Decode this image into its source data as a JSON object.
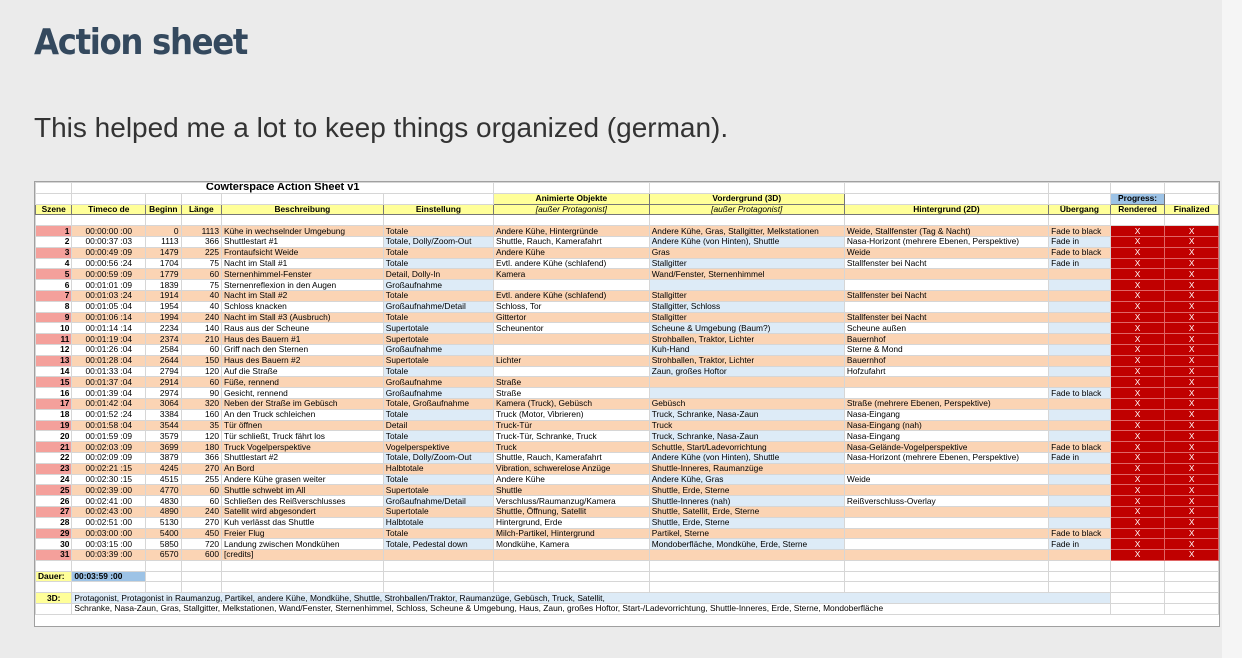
{
  "page": {
    "title": "Action sheet",
    "subtitle": "This helped me a lot to keep things organized (german)."
  },
  "sheet": {
    "title": "Cowterspace Action Sheet v1",
    "progress_label": "Progress:",
    "headers": {
      "szene": "Szene",
      "timecode": "Timeco de",
      "beginn": "Beginn",
      "laenge": "Länge",
      "beschreibung": "Beschreibung",
      "einstellung": "Einstellung",
      "animierte": "Animierte Objekte",
      "animierte_sub": "[außer Protagonist]",
      "vordergrund": "Vordergrund (3D)",
      "vordergrund_sub": "[außer Protagonist]",
      "hintergrund": "Hintergrund (2D)",
      "uebergang": "Übergang",
      "rendered": "Rendered",
      "finalized": "Finalized"
    },
    "rows": [
      {
        "n": "1",
        "tc": "00:00:00 :00",
        "b": "0",
        "l": "1113",
        "d": "Kühe in wechselnder Umgebung",
        "e": "Totale",
        "a": "Andere Kühe, Hintergründe",
        "v": "Andere Kühe, Gras, Stallgitter, Melkstationen",
        "h": "Weide, Stallfenster (Tag & Nacht)",
        "u": "Fade to black",
        "r": "X",
        "f": "X"
      },
      {
        "n": "2",
        "tc": "00:00:37 :03",
        "b": "1113",
        "l": "366",
        "d": "Shuttlestart #1",
        "e": "Totale, Dolly/Zoom-Out",
        "a": "Shuttle, Rauch, Kamerafahrt",
        "v": "Andere Kühe (von Hinten), Shuttle",
        "h": "Nasa-Horizont (mehrere Ebenen, Perspektive)",
        "u": "Fade in",
        "r": "X",
        "f": "X"
      },
      {
        "n": "3",
        "tc": "00:00:49 :09",
        "b": "1479",
        "l": "225",
        "d": "Frontaufsicht Weide",
        "e": "Totale",
        "a": "Andere Kühe",
        "v": "Gras",
        "h": "Weide",
        "u": "Fade to black",
        "r": "X",
        "f": "X"
      },
      {
        "n": "4",
        "tc": "00:00:56 :24",
        "b": "1704",
        "l": "75",
        "d": "Nacht im Stall #1",
        "e": "Totale",
        "a": "Evtl. andere Kühe (schlafend)",
        "v": "Stallgitter",
        "h": "Stallfenster bei Nacht",
        "u": "Fade in",
        "r": "X",
        "f": "X"
      },
      {
        "n": "5",
        "tc": "00:00:59 :09",
        "b": "1779",
        "l": "60",
        "d": "Sternenhimmel-Fenster",
        "e": "Detail, Dolly-In",
        "a": "Kamera",
        "v": "Wand/Fenster, Sternenhimmel",
        "h": "",
        "u": "",
        "r": "X",
        "f": "X"
      },
      {
        "n": "6",
        "tc": "00:01:01 :09",
        "b": "1839",
        "l": "75",
        "d": "Sternenreflexion in den Augen",
        "e": "Großaufnahme",
        "a": "",
        "v": "",
        "h": "",
        "u": "",
        "r": "X",
        "f": "X"
      },
      {
        "n": "7",
        "tc": "00:01:03 :24",
        "b": "1914",
        "l": "40",
        "d": "Nacht im Stall #2",
        "e": "Totale",
        "a": "Evtl. andere Kühe (schlafend)",
        "v": "Stallgitter",
        "h": "Stallfenster bei Nacht",
        "u": "",
        "r": "X",
        "f": "X"
      },
      {
        "n": "8",
        "tc": "00:01:05 :04",
        "b": "1954",
        "l": "40",
        "d": "Schloss knacken",
        "e": "Großaufnahme/Detail",
        "a": "Schloss, Tor",
        "v": "Stallgitter, Schloss",
        "h": "",
        "u": "",
        "r": "X",
        "f": "X"
      },
      {
        "n": "9",
        "tc": "00:01:06 :14",
        "b": "1994",
        "l": "240",
        "d": "Nacht im Stall #3 (Ausbruch)",
        "e": "Totale",
        "a": "Gittertor",
        "v": "Stallgitter",
        "h": "Stallfenster bei Nacht",
        "u": "",
        "r": "X",
        "f": "X"
      },
      {
        "n": "10",
        "tc": "00:01:14 :14",
        "b": "2234",
        "l": "140",
        "d": "Raus aus der Scheune",
        "e": "Supertotale",
        "a": "Scheunentor",
        "v": "Scheune & Umgebung (Baum?)",
        "h": "Scheune außen",
        "u": "",
        "r": "X",
        "f": "X"
      },
      {
        "n": "11",
        "tc": "00:01:19 :04",
        "b": "2374",
        "l": "210",
        "d": "Haus des Bauern #1",
        "e": "Supertotale",
        "a": "",
        "v": "Strohballen, Traktor, Lichter",
        "h": "Bauernhof",
        "u": "",
        "r": "X",
        "f": "X"
      },
      {
        "n": "12",
        "tc": "00:01:26 :04",
        "b": "2584",
        "l": "60",
        "d": "Griff nach den Sternen",
        "e": "Großaufnahme",
        "a": "",
        "v": "Kuh-Hand",
        "h": "Sterne & Mond",
        "u": "",
        "r": "X",
        "f": "X"
      },
      {
        "n": "13",
        "tc": "00:01:28 :04",
        "b": "2644",
        "l": "150",
        "d": "Haus des Bauern #2",
        "e": "Supertotale",
        "a": "Lichter",
        "v": "Strohballen, Traktor, Lichter",
        "h": "Bauernhof",
        "u": "",
        "r": "X",
        "f": "X"
      },
      {
        "n": "14",
        "tc": "00:01:33 :04",
        "b": "2794",
        "l": "120",
        "d": "Auf die Straße",
        "e": "Totale",
        "a": "",
        "v": "Zaun, großes Hoftor",
        "h": "Hofzufahrt",
        "u": "",
        "r": "X",
        "f": "X"
      },
      {
        "n": "15",
        "tc": "00:01:37 :04",
        "b": "2914",
        "l": "60",
        "d": "Füße, rennend",
        "e": "Großaufnahme",
        "a": "Straße",
        "v": "",
        "h": "",
        "u": "",
        "r": "X",
        "f": "X"
      },
      {
        "n": "16",
        "tc": "00:01:39 :04",
        "b": "2974",
        "l": "90",
        "d": "Gesicht, rennend",
        "e": "Großaufnahme",
        "a": "Straße",
        "v": "",
        "h": "",
        "u": "Fade to black",
        "r": "X",
        "f": "X"
      },
      {
        "n": "17",
        "tc": "00:01:42 :04",
        "b": "3064",
        "l": "320",
        "d": "Neben der Straße im Gebüsch",
        "e": "Totale, Großaufnahme",
        "a": "Kamera (Truck), Gebüsch",
        "v": "Gebüsch",
        "h": "Straße (mehrere Ebenen, Perspektive)",
        "u": "",
        "r": "X",
        "f": "X"
      },
      {
        "n": "18",
        "tc": "00:01:52 :24",
        "b": "3384",
        "l": "160",
        "d": "An den Truck schleichen",
        "e": "Totale",
        "a": "Truck (Motor, Vibrieren)",
        "v": "Truck, Schranke, Nasa-Zaun",
        "h": "Nasa-Eingang",
        "u": "",
        "r": "X",
        "f": "X"
      },
      {
        "n": "19",
        "tc": "00:01:58 :04",
        "b": "3544",
        "l": "35",
        "d": "Tür öffnen",
        "e": "Detail",
        "a": "Truck-Tür",
        "v": "Truck",
        "h": "Nasa-Eingang (nah)",
        "u": "",
        "r": "X",
        "f": "X"
      },
      {
        "n": "20",
        "tc": "00:01:59 :09",
        "b": "3579",
        "l": "120",
        "d": "Tür schließt, Truck fährt los",
        "e": "Totale",
        "a": "Truck-Tür, Schranke, Truck",
        "v": "Truck, Schranke, Nasa-Zaun",
        "h": "Nasa-Eingang",
        "u": "",
        "r": "X",
        "f": "X"
      },
      {
        "n": "21",
        "tc": "00:02:03 :09",
        "b": "3699",
        "l": "180",
        "d": "Truck Vogelperspektive",
        "e": "Vogelperspektive",
        "a": "Truck",
        "v": "Schuttle, Start/Ladevorrichtung",
        "h": "Nasa-Gelände-Vogelperspektive",
        "u": "Fade to black",
        "r": "X",
        "f": "X"
      },
      {
        "n": "22",
        "tc": "00:02:09 :09",
        "b": "3879",
        "l": "366",
        "d": "Shuttlestart #2",
        "e": "Totale, Dolly/Zoom-Out",
        "a": "Shuttle, Rauch, Kamerafahrt",
        "v": "Andere Kühe (von Hinten), Shuttle",
        "h": "Nasa-Horizont (mehrere Ebenen, Perspektive)",
        "u": "Fade in",
        "r": "X",
        "f": "X"
      },
      {
        "n": "23",
        "tc": "00:02:21 :15",
        "b": "4245",
        "l": "270",
        "d": "An Bord",
        "e": "Halbtotale",
        "a": "Vibration, schwerelose Anzüge",
        "v": "Shuttle-Inneres, Raumanzüge",
        "h": "",
        "u": "",
        "r": "X",
        "f": "X"
      },
      {
        "n": "24",
        "tc": "00:02:30 :15",
        "b": "4515",
        "l": "255",
        "d": "Andere Kühe grasen weiter",
        "e": "Totale",
        "a": "Andere Kühe",
        "v": "Andere Kühe, Gras",
        "h": "Weide",
        "u": "",
        "r": "X",
        "f": "X"
      },
      {
        "n": "25",
        "tc": "00:02:39 :00",
        "b": "4770",
        "l": "60",
        "d": "Shuttle schwebt im All",
        "e": "Supertotale",
        "a": "Shuttle",
        "v": "Shuttle, Erde, Sterne",
        "h": "",
        "u": "",
        "r": "X",
        "f": "X"
      },
      {
        "n": "26",
        "tc": "00:02:41 :00",
        "b": "4830",
        "l": "60",
        "d": "Schließen des Reißverschlusses",
        "e": "Großaufnahme/Detail",
        "a": "Verschluss/Raumanzug/Kamera",
        "v": "Shuttle-Inneres (nah)",
        "h": "Reißverschluss-Overlay",
        "u": "",
        "r": "X",
        "f": "X"
      },
      {
        "n": "27",
        "tc": "00:02:43 :00",
        "b": "4890",
        "l": "240",
        "d": "Satellit wird abgesondert",
        "e": "Supertotale",
        "a": "Shuttle, Öffnung, Satellit",
        "v": "Shuttle, Satellit, Erde, Sterne",
        "h": "",
        "u": "",
        "r": "X",
        "f": "X"
      },
      {
        "n": "28",
        "tc": "00:02:51 :00",
        "b": "5130",
        "l": "270",
        "d": "Kuh verlässt das Shuttle",
        "e": "Halbtotale",
        "a": "Hintergrund, Erde",
        "v": "Shuttle, Erde, Sterne",
        "h": "",
        "u": "",
        "r": "X",
        "f": "X"
      },
      {
        "n": "29",
        "tc": "00:03:00 :00",
        "b": "5400",
        "l": "450",
        "d": "Freier Flug",
        "e": "Totale",
        "a": "Milch-Partikel, Hintergrund",
        "v": "Partikel, Sterne",
        "h": "",
        "u": "Fade to black",
        "r": "X",
        "f": "X"
      },
      {
        "n": "30",
        "tc": "00:03:15 :00",
        "b": "5850",
        "l": "720",
        "d": "Landung zwischen Mondkühen",
        "e": "Totale, Pedestal down",
        "a": "Mondkühe, Kamera",
        "v": "Mondoberfläche, Mondkühe, Erde, Sterne",
        "h": "",
        "u": "Fade in",
        "r": "X",
        "f": "X"
      },
      {
        "n": "31",
        "tc": "00:03:39 :00",
        "b": "6570",
        "l": "600",
        "d": "[credits]",
        "e": "",
        "a": "",
        "v": "",
        "h": "",
        "u": "",
        "r": "X",
        "f": "X"
      }
    ],
    "dauer_label": "Dauer:",
    "dauer_value": "00:03:59 :00",
    "threed_label": "3D:",
    "threed_line1": "Protagonist, Protagonist in Raumanzug, Partikel, andere Kühe, Mondkühe, Shuttle, Strohballen/Traktor, Raumanzüge, Gebüsch, Truck, Satellit,",
    "threed_line2": "Schranke, Nasa-Zaun, Gras, Stallgitter, Melkstationen, Wand/Fenster, Sternenhimmel, Schloss, Scheune & Umgebung, Haus, Zaun, großes Hoftor, Start-/Ladevorrichtung, Shuttle-Inneres, Erde, Sterne, Mondoberfläche"
  }
}
